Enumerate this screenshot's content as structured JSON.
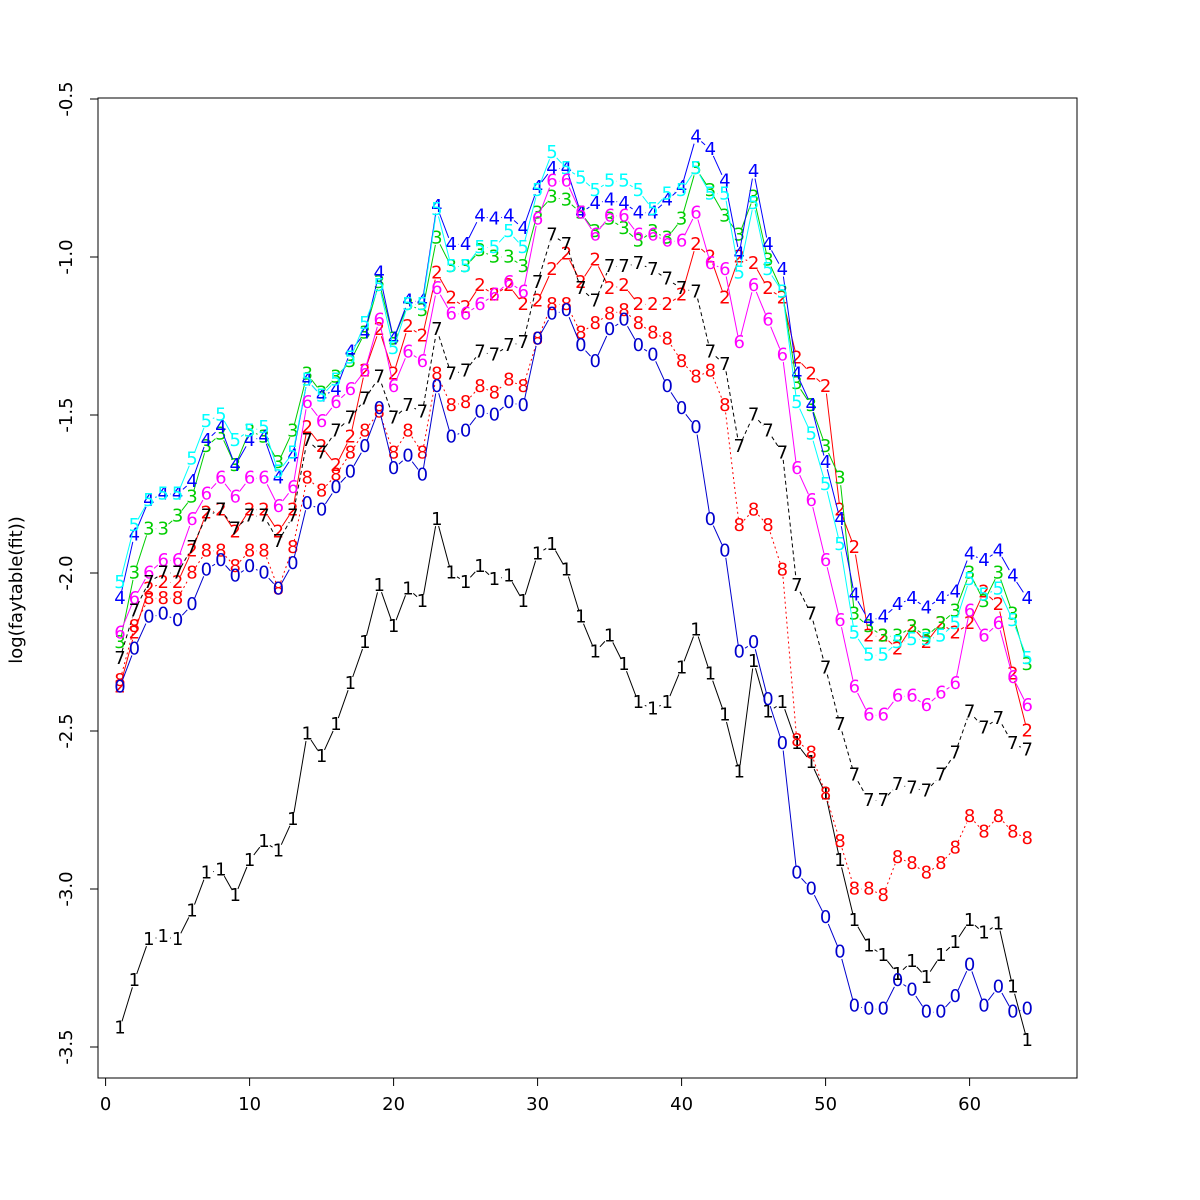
{
  "chart_data": {
    "type": "line",
    "title": "",
    "xlabel": "",
    "ylabel": "log(faytable(fit))",
    "xlim": [
      0,
      66
    ],
    "ylim": [
      -3.6,
      -0.5
    ],
    "xticks": [
      "0",
      "10",
      "20",
      "30",
      "40",
      "50",
      "60"
    ],
    "yticks": [
      "-3.5",
      "-3.0",
      "-2.5",
      "-2.0",
      "-1.5",
      "-1.0",
      "-0.5"
    ],
    "grid": false,
    "legend": "none",
    "x": [
      1,
      2,
      3,
      4,
      5,
      6,
      7,
      8,
      9,
      10,
      11,
      12,
      13,
      14,
      15,
      16,
      17,
      18,
      19,
      20,
      21,
      22,
      23,
      24,
      25,
      26,
      27,
      28,
      29,
      30,
      31,
      32,
      33,
      34,
      35,
      36,
      37,
      38,
      39,
      40,
      41,
      42,
      43,
      44,
      45,
      46,
      47,
      48,
      49,
      50,
      51,
      52,
      53,
      54,
      55,
      56,
      57,
      58,
      59,
      60,
      61,
      62,
      63,
      64
    ],
    "series": [
      {
        "symbol": "1",
        "color": "#000000",
        "dash": "",
        "values": [
          -3.44,
          -3.29,
          -3.16,
          -3.15,
          -3.16,
          -3.07,
          -2.95,
          -2.94,
          -3.02,
          -2.91,
          -2.85,
          -2.88,
          -2.78,
          -2.51,
          -2.58,
          -2.48,
          -2.35,
          -2.22,
          -2.04,
          -2.17,
          -2.05,
          -2.09,
          -1.83,
          -2.0,
          -2.03,
          -1.98,
          -2.02,
          -2.01,
          -2.09,
          -1.94,
          -1.91,
          -1.99,
          -2.14,
          -2.25,
          -2.2,
          -2.29,
          -2.41,
          -2.43,
          -2.41,
          -2.3,
          -2.18,
          -2.32,
          -2.45,
          -2.63,
          -2.28,
          -2.44,
          -2.41,
          -2.54,
          -2.6,
          -2.7,
          -2.91,
          -3.1,
          -3.18,
          -3.21,
          -3.27,
          -3.23,
          -3.28,
          -3.21,
          -3.17,
          -3.1,
          -3.14,
          -3.11,
          -3.31,
          -3.48
        ]
      },
      {
        "symbol": "2",
        "color": "#ff0000",
        "dash": "",
        "values": [
          -2.36,
          -2.19,
          -2.05,
          -2.03,
          -2.03,
          -1.93,
          -1.81,
          -1.8,
          -1.87,
          -1.8,
          -1.8,
          -1.87,
          -1.8,
          -1.54,
          -1.6,
          -1.66,
          -1.57,
          -1.36,
          -1.23,
          -1.37,
          -1.22,
          -1.25,
          -1.05,
          -1.13,
          -1.16,
          -1.09,
          -1.12,
          -1.09,
          -1.15,
          -1.14,
          -1.04,
          -0.99,
          -1.08,
          -1.01,
          -1.1,
          -1.09,
          -1.15,
          -1.15,
          -1.15,
          -1.12,
          -0.96,
          -1.0,
          -1.13,
          -1.0,
          -1.02,
          -1.1,
          -1.13,
          -1.32,
          -1.37,
          -1.41,
          -1.8,
          -1.92,
          -2.2,
          -2.2,
          -2.24,
          -2.17,
          -2.22,
          -2.16,
          -2.19,
          -2.16,
          -2.06,
          -2.1,
          -2.32,
          -2.5
        ]
      },
      {
        "symbol": "3",
        "color": "#00cd00",
        "dash": "",
        "values": [
          -2.22,
          -2.0,
          -1.86,
          -1.86,
          -1.82,
          -1.76,
          -1.6,
          -1.56,
          -1.66,
          -1.55,
          -1.57,
          -1.65,
          -1.55,
          -1.37,
          -1.43,
          -1.38,
          -1.33,
          -1.24,
          -1.08,
          -1.26,
          -1.15,
          -1.17,
          -0.94,
          -1.03,
          -1.03,
          -0.98,
          -1.0,
          -1.0,
          -1.03,
          -0.86,
          -0.81,
          -0.82,
          -0.86,
          -0.92,
          -0.88,
          -0.91,
          -0.95,
          -0.92,
          -0.94,
          -0.88,
          -0.72,
          -0.79,
          -0.87,
          -0.93,
          -0.81,
          -1.01,
          -1.11,
          -1.4,
          -1.47,
          -1.6,
          -1.7,
          -2.13,
          -2.17,
          -2.2,
          -2.2,
          -2.17,
          -2.2,
          -2.16,
          -2.12,
          -2.0,
          -2.09,
          -2.0,
          -2.13,
          -2.29
        ]
      },
      {
        "symbol": "4",
        "color": "#0000ff",
        "dash": "",
        "values": [
          -2.08,
          -1.88,
          -1.77,
          -1.75,
          -1.75,
          -1.71,
          -1.58,
          -1.54,
          -1.66,
          -1.58,
          -1.57,
          -1.7,
          -1.63,
          -1.39,
          -1.44,
          -1.42,
          -1.3,
          -1.24,
          -1.05,
          -1.26,
          -1.14,
          -1.14,
          -0.84,
          -0.96,
          -0.96,
          -0.87,
          -0.88,
          -0.87,
          -0.91,
          -0.78,
          -0.72,
          -0.72,
          -0.86,
          -0.83,
          -0.82,
          -0.83,
          -0.86,
          -0.86,
          -0.82,
          -0.78,
          -0.62,
          -0.66,
          -0.76,
          -0.99,
          -0.73,
          -0.96,
          -1.04,
          -1.37,
          -1.47,
          -1.65,
          -1.83,
          -2.07,
          -2.15,
          -2.14,
          -2.1,
          -2.08,
          -2.11,
          -2.08,
          -2.06,
          -1.94,
          -1.96,
          -1.93,
          -2.01,
          -2.08
        ]
      },
      {
        "symbol": "5",
        "color": "#00ffff",
        "dash": "",
        "values": [
          -2.03,
          -1.85,
          -1.77,
          -1.75,
          -1.75,
          -1.64,
          -1.52,
          -1.5,
          -1.58,
          -1.55,
          -1.54,
          -1.68,
          -1.62,
          -1.39,
          -1.44,
          -1.39,
          -1.32,
          -1.21,
          -1.09,
          -1.29,
          -1.15,
          -1.15,
          -0.85,
          -1.03,
          -1.03,
          -0.97,
          -0.97,
          -0.92,
          -0.97,
          -0.79,
          -0.67,
          -0.72,
          -0.75,
          -0.79,
          -0.76,
          -0.76,
          -0.79,
          -0.85,
          -0.8,
          -0.79,
          -0.72,
          -0.8,
          -0.8,
          -1.05,
          -0.83,
          -1.04,
          -1.11,
          -1.46,
          -1.56,
          -1.72,
          -1.91,
          -2.19,
          -2.26,
          -2.26,
          -2.22,
          -2.21,
          -2.21,
          -2.2,
          -2.16,
          -2.02,
          -2.07,
          -2.05,
          -2.15,
          -2.27
        ]
      },
      {
        "symbol": "6",
        "color": "#ff00ff",
        "dash": "",
        "values": [
          -2.19,
          -2.08,
          -2.0,
          -1.96,
          -1.96,
          -1.83,
          -1.75,
          -1.7,
          -1.76,
          -1.7,
          -1.7,
          -1.79,
          -1.73,
          -1.46,
          -1.52,
          -1.46,
          -1.42,
          -1.36,
          -1.2,
          -1.41,
          -1.3,
          -1.33,
          -1.1,
          -1.18,
          -1.18,
          -1.15,
          -1.12,
          -1.08,
          -1.11,
          -0.88,
          -0.76,
          -0.76,
          -0.86,
          -0.93,
          -0.87,
          -0.87,
          -0.93,
          -0.93,
          -0.95,
          -0.95,
          -0.86,
          -1.02,
          -1.04,
          -1.27,
          -1.09,
          -1.2,
          -1.31,
          -1.67,
          -1.77,
          -1.96,
          -2.15,
          -2.36,
          -2.45,
          -2.45,
          -2.39,
          -2.39,
          -2.42,
          -2.38,
          -2.35,
          -2.12,
          -2.2,
          -2.16,
          -2.33,
          -2.42
        ]
      },
      {
        "symbol": "7",
        "color": "#000000",
        "dash": "4,3",
        "values": [
          -2.27,
          -2.12,
          -2.03,
          -2.0,
          -2.0,
          -1.92,
          -1.82,
          -1.8,
          -1.86,
          -1.82,
          -1.82,
          -1.9,
          -1.82,
          -1.58,
          -1.62,
          -1.55,
          -1.51,
          -1.45,
          -1.38,
          -1.51,
          -1.47,
          -1.49,
          -1.23,
          -1.37,
          -1.36,
          -1.3,
          -1.31,
          -1.28,
          -1.27,
          -1.08,
          -0.93,
          -0.96,
          -1.1,
          -1.14,
          -1.03,
          -1.03,
          -1.02,
          -1.04,
          -1.07,
          -1.1,
          -1.11,
          -1.3,
          -1.34,
          -1.6,
          -1.5,
          -1.55,
          -1.62,
          -2.04,
          -2.13,
          -2.3,
          -2.48,
          -2.64,
          -2.72,
          -2.72,
          -2.67,
          -2.68,
          -2.69,
          -2.64,
          -2.57,
          -2.44,
          -2.49,
          -2.46,
          -2.54,
          -2.56
        ]
      },
      {
        "symbol": "8",
        "color": "#ff0000",
        "dash": "2,3",
        "values": [
          -2.34,
          -2.17,
          -2.08,
          -2.08,
          -2.08,
          -2.0,
          -1.93,
          -1.93,
          -1.98,
          -1.93,
          -1.93,
          -2.05,
          -1.92,
          -1.7,
          -1.74,
          -1.69,
          -1.62,
          -1.55,
          -1.49,
          -1.62,
          -1.55,
          -1.62,
          -1.37,
          -1.47,
          -1.46,
          -1.41,
          -1.43,
          -1.39,
          -1.41,
          -1.26,
          -1.15,
          -1.15,
          -1.24,
          -1.21,
          -1.18,
          -1.17,
          -1.21,
          -1.24,
          -1.26,
          -1.33,
          -1.38,
          -1.36,
          -1.47,
          -1.85,
          -1.8,
          -1.85,
          -1.99,
          -2.53,
          -2.57,
          -2.7,
          -2.85,
          -3.0,
          -3.0,
          -3.02,
          -2.9,
          -2.92,
          -2.95,
          -2.92,
          -2.87,
          -2.77,
          -2.82,
          -2.77,
          -2.82,
          -2.84
        ]
      },
      {
        "symbol": "0",
        "color": "#0000cd",
        "dash": "",
        "values": [
          -2.36,
          -2.24,
          -2.14,
          -2.13,
          -2.15,
          -2.1,
          -1.99,
          -1.96,
          -2.01,
          -1.98,
          -2.0,
          -2.05,
          -1.97,
          -1.78,
          -1.8,
          -1.73,
          -1.68,
          -1.6,
          -1.48,
          -1.67,
          -1.63,
          -1.69,
          -1.41,
          -1.57,
          -1.55,
          -1.49,
          -1.5,
          -1.46,
          -1.47,
          -1.26,
          -1.18,
          -1.17,
          -1.28,
          -1.33,
          -1.23,
          -1.2,
          -1.28,
          -1.31,
          -1.41,
          -1.48,
          -1.54,
          -1.83,
          -1.93,
          -2.25,
          -2.22,
          -2.4,
          -2.54,
          -2.95,
          -3.0,
          -3.09,
          -3.2,
          -3.37,
          -3.38,
          -3.38,
          -3.29,
          -3.32,
          -3.39,
          -3.39,
          -3.34,
          -3.24,
          -3.37,
          -3.31,
          -3.39,
          -3.38
        ]
      }
    ]
  }
}
